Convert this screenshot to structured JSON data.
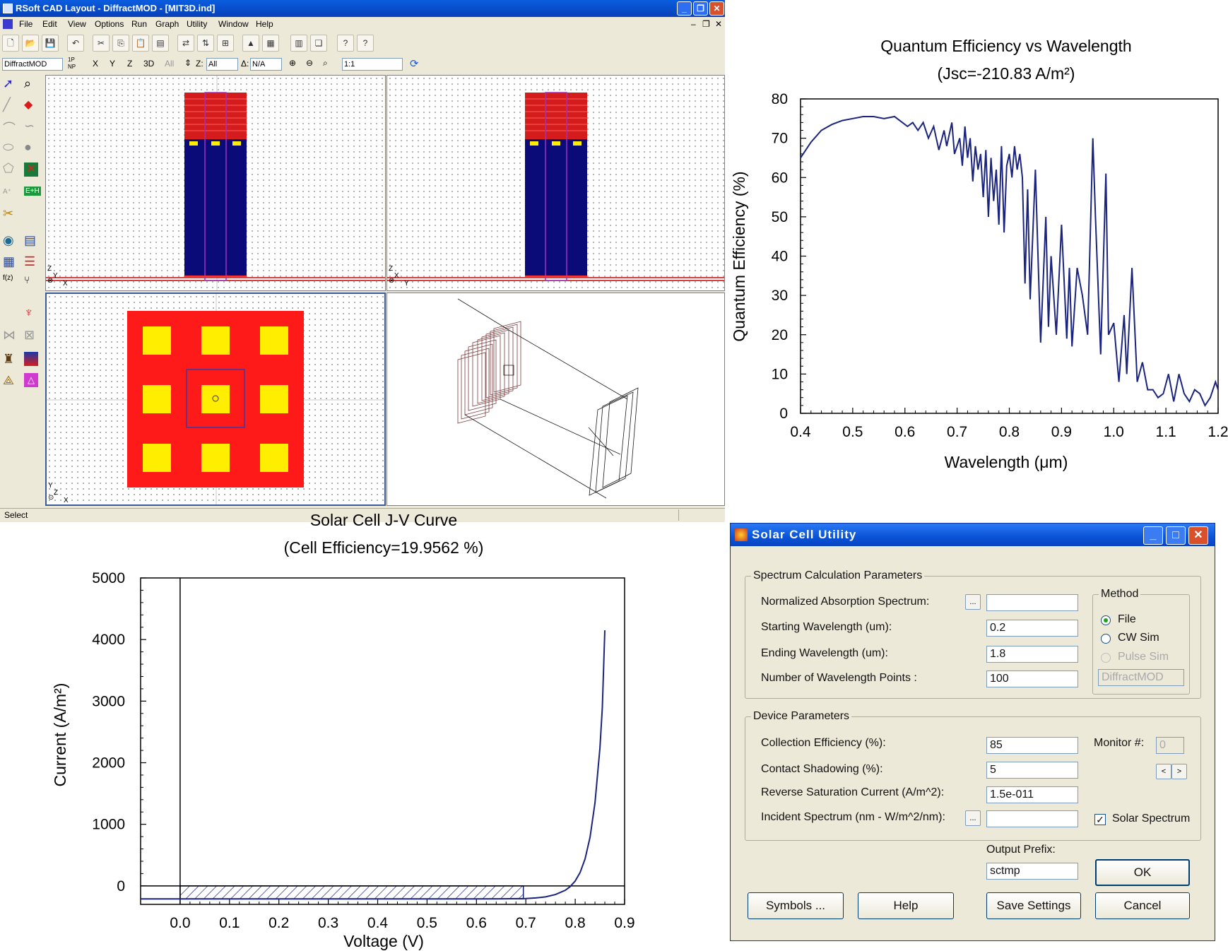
{
  "cad_window": {
    "title": "RSoft CAD Layout - DiffractMOD - [MIT3D.ind]",
    "menu": [
      "File",
      "Edit",
      "View",
      "Options",
      "Run",
      "Graph",
      "Utility",
      "Window",
      "Help"
    ],
    "toolbar2": {
      "module": "DiffractMOD",
      "one_p": "1P",
      "n_p": "NP",
      "axes": [
        "X",
        "Y",
        "Z",
        "3D",
        "All"
      ],
      "z_label": "Z:",
      "z_value": "All",
      "delta_label": "Δ:",
      "delta_value": "N/A",
      "zoom": "1:1"
    },
    "left_tools": [
      "f(z)",
      "E+H"
    ],
    "pane_axes": {
      "top_left": [
        "Z",
        "Y",
        "X"
      ],
      "top_right": [
        "Z",
        "X",
        "Y"
      ],
      "bottom_left": [
        "Y",
        "Z",
        "X"
      ]
    },
    "status": "Select",
    "colors": {
      "substrate": "#0a0a78",
      "grating": "#d41c1c",
      "contact": "#ffee00",
      "mesa": "#ff1a1a"
    }
  },
  "qe_chart": {
    "chart_data": {
      "type": "line",
      "title": "Quantum Efficiency vs Wavelength",
      "subtitle": "(Jsc=-210.83 A/m²)",
      "xlabel": "Wavelength (μm)",
      "ylabel": "Quantum Efficiency (%)",
      "xlim": [
        0.4,
        1.2
      ],
      "ylim": [
        0,
        80
      ],
      "xticks": [
        "0.4",
        "0.5",
        "0.6",
        "0.7",
        "0.8",
        "0.9",
        "1.0",
        "1.1",
        "1.2"
      ],
      "yticks": [
        "0",
        "10",
        "20",
        "30",
        "40",
        "50",
        "60",
        "70",
        "80"
      ],
      "color": "#1a237e",
      "x": [
        0.4,
        0.42,
        0.44,
        0.46,
        0.48,
        0.5,
        0.52,
        0.54,
        0.56,
        0.58,
        0.59,
        0.605,
        0.615,
        0.625,
        0.635,
        0.645,
        0.655,
        0.665,
        0.675,
        0.68,
        0.69,
        0.695,
        0.705,
        0.71,
        0.715,
        0.72,
        0.725,
        0.73,
        0.735,
        0.74,
        0.745,
        0.75,
        0.755,
        0.76,
        0.765,
        0.77,
        0.775,
        0.78,
        0.785,
        0.79,
        0.795,
        0.8,
        0.805,
        0.81,
        0.815,
        0.82,
        0.825,
        0.83,
        0.835,
        0.84,
        0.85,
        0.86,
        0.87,
        0.875,
        0.88,
        0.89,
        0.9,
        0.91,
        0.915,
        0.92,
        0.93,
        0.94,
        0.95,
        0.96,
        0.965,
        0.975,
        0.985,
        0.99,
        1.0,
        1.01,
        1.02,
        1.025,
        1.035,
        1.045,
        1.055,
        1.065,
        1.075,
        1.085,
        1.095,
        1.105,
        1.115,
        1.125,
        1.135,
        1.145,
        1.155,
        1.165,
        1.175,
        1.185,
        1.195,
        1.2
      ],
      "y": [
        65,
        69,
        72,
        73.5,
        74.5,
        75,
        75.5,
        75.5,
        75,
        75.5,
        74.5,
        73,
        74,
        72,
        74,
        70,
        73,
        67,
        72,
        68,
        74,
        66,
        70,
        63,
        73,
        65,
        70,
        59,
        68,
        62,
        66,
        55,
        67,
        50,
        65,
        54,
        62,
        48,
        68,
        46,
        63,
        66,
        60,
        68,
        62,
        66,
        60,
        33,
        57,
        29,
        62,
        18,
        50,
        22,
        40,
        20,
        48,
        19,
        37,
        17,
        37,
        30,
        20,
        70,
        50,
        15,
        61,
        20,
        23,
        8,
        25,
        10,
        37,
        8,
        13,
        6,
        6,
        4,
        5,
        10,
        3,
        10,
        5,
        3,
        6,
        5,
        2,
        4,
        8,
        6
      ]
    }
  },
  "jv_chart": {
    "chart_data": {
      "type": "line",
      "title": "Solar Cell J-V Curve",
      "subtitle": "(Cell Efficiency=19.9562 %)",
      "xlabel": "Voltage (V)",
      "ylabel": "Current (A/m²)",
      "xlim": [
        -0.08,
        0.9
      ],
      "ylim": [
        -300,
        5000
      ],
      "xticks": [
        "0.0",
        "0.1",
        "0.2",
        "0.3",
        "0.4",
        "0.5",
        "0.6",
        "0.7",
        "0.8",
        "0.9"
      ],
      "yticks": [
        "0",
        "1000",
        "2000",
        "3000",
        "4000",
        "5000"
      ],
      "color": "#1a237e",
      "x": [
        -0.08,
        0,
        0.1,
        0.2,
        0.3,
        0.4,
        0.5,
        0.6,
        0.65,
        0.7,
        0.72,
        0.74,
        0.76,
        0.78,
        0.79,
        0.8,
        0.81,
        0.82,
        0.83,
        0.84,
        0.85,
        0.855,
        0.86
      ],
      "y": [
        -211,
        -211,
        -211,
        -211,
        -211,
        -211,
        -211,
        -210,
        -209,
        -205,
        -196,
        -178,
        -140,
        -70,
        -10,
        80,
        220,
        440,
        790,
        1350,
        2240,
        2900,
        4150
      ],
      "max_power_point": {
        "voltage": 0.695,
        "current": -211
      }
    }
  },
  "dialog": {
    "title": "Solar Cell Utility",
    "spectrum_group": "Spectrum Calculation Parameters",
    "norm_abs_label": "Normalized Absorption Spectrum:",
    "norm_abs_value": "",
    "browse": "...",
    "start_wl_label": "Starting Wavelength (um):",
    "start_wl_value": "0.2",
    "end_wl_label": "Ending Wavelength (um):",
    "end_wl_value": "1.8",
    "num_pts_label": "Number of Wavelength Points :",
    "num_pts_value": "100",
    "method_group": "Method",
    "method_file": "File",
    "method_cw": "CW Sim",
    "method_pulse": "Pulse Sim",
    "method_engine": "DiffractMOD",
    "device_group": "Device Parameters",
    "coll_eff_label": "Collection Efficiency (%):",
    "coll_eff_value": "85",
    "contact_label": "Contact Shadowing (%):",
    "contact_value": "5",
    "rev_sat_label": "Reverse Saturation Current (A/m^2):",
    "rev_sat_value": "1.5e-011",
    "incident_label": "Incident Spectrum (nm - W/m^2/nm):",
    "incident_value": "",
    "monitor_label": "Monitor #:",
    "monitor_value": "0",
    "prev": "<",
    "next": ">",
    "solar_spectrum": "Solar Spectrum",
    "output_prefix_label": "Output Prefix:",
    "output_prefix_value": "sctmp",
    "ok": "OK",
    "symbols": "Symbols ...",
    "help": "Help",
    "save": "Save Settings",
    "cancel": "Cancel"
  }
}
